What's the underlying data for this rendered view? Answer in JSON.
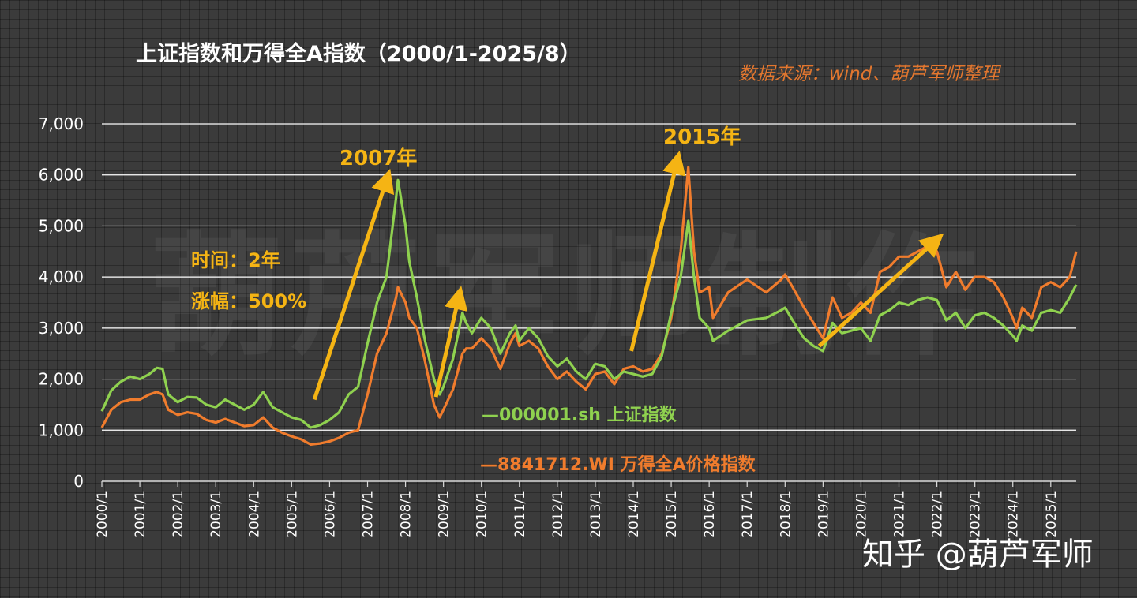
{
  "header": {
    "title": "上证指数和万得全A指数（2000/1-2025/8）",
    "source": "数据来源：wind、葫芦军师整理"
  },
  "watermark": "葫芦军师制作",
  "annotations": {
    "year_2007": "2007年",
    "year_2015": "2015年",
    "duration": "时间：2年",
    "gain": "涨幅：500%"
  },
  "legend": {
    "sh": "—000001.sh 上证指数",
    "wi": "—8841712.WI 万得全A价格指数"
  },
  "footer": {
    "zhihu": "知乎 @葫芦军师"
  },
  "colors": {
    "sh": "#8fd14f",
    "wi": "#f07c2d",
    "arrow": "#f5b414",
    "grid": "#ffffff"
  },
  "chart_data": {
    "type": "line",
    "title": "上证指数和万得全A指数（2000/1-2025/8）",
    "xlabel": "",
    "ylabel": "",
    "xlim": [
      2000.0,
      2025.67
    ],
    "ylim": [
      0,
      7000
    ],
    "yticks": [
      0,
      1000,
      2000,
      3000,
      4000,
      5000,
      6000,
      7000
    ],
    "ytick_labels": [
      "0",
      "1,000",
      "2,000",
      "3,000",
      "4,000",
      "5,000",
      "6,000",
      "7,000"
    ],
    "categories": [
      "2000/1",
      "2001/1",
      "2002/1",
      "2003/1",
      "2004/1",
      "2005/1",
      "2006/1",
      "2007/1",
      "2008/1",
      "2009/1",
      "2010/1",
      "2011/1",
      "2012/1",
      "2013/1",
      "2014/1",
      "2015/1",
      "2016/1",
      "2017/1",
      "2018/1",
      "2019/1",
      "2020/1",
      "2021/1",
      "2022/1",
      "2023/1",
      "2024/1",
      "2025/1"
    ],
    "series": [
      {
        "name": "000001.sh 上证指数",
        "points": [
          [
            2000.0,
            1370
          ],
          [
            2000.25,
            1780
          ],
          [
            2000.5,
            1950
          ],
          [
            2000.75,
            2050
          ],
          [
            2001.0,
            2000
          ],
          [
            2001.25,
            2100
          ],
          [
            2001.45,
            2220
          ],
          [
            2001.6,
            2200
          ],
          [
            2001.75,
            1700
          ],
          [
            2002.0,
            1550
          ],
          [
            2002.25,
            1650
          ],
          [
            2002.5,
            1640
          ],
          [
            2002.75,
            1500
          ],
          [
            2003.0,
            1450
          ],
          [
            2003.25,
            1600
          ],
          [
            2003.5,
            1500
          ],
          [
            2003.75,
            1400
          ],
          [
            2004.0,
            1500
          ],
          [
            2004.25,
            1750
          ],
          [
            2004.5,
            1450
          ],
          [
            2004.75,
            1350
          ],
          [
            2005.0,
            1250
          ],
          [
            2005.25,
            1200
          ],
          [
            2005.5,
            1050
          ],
          [
            2005.75,
            1100
          ],
          [
            2006.0,
            1200
          ],
          [
            2006.25,
            1350
          ],
          [
            2006.5,
            1700
          ],
          [
            2006.75,
            1850
          ],
          [
            2007.0,
            2700
          ],
          [
            2007.25,
            3500
          ],
          [
            2007.5,
            4000
          ],
          [
            2007.75,
            5550
          ],
          [
            2007.8,
            5900
          ],
          [
            2008.0,
            5000
          ],
          [
            2008.1,
            4300
          ],
          [
            2008.3,
            3600
          ],
          [
            2008.5,
            2800
          ],
          [
            2008.75,
            2000
          ],
          [
            2008.9,
            1700
          ],
          [
            2009.0,
            1850
          ],
          [
            2009.25,
            2400
          ],
          [
            2009.5,
            3300
          ],
          [
            2009.6,
            3100
          ],
          [
            2009.75,
            2900
          ],
          [
            2010.0,
            3200
          ],
          [
            2010.25,
            3000
          ],
          [
            2010.5,
            2500
          ],
          [
            2010.75,
            2900
          ],
          [
            2010.9,
            3050
          ],
          [
            2011.0,
            2750
          ],
          [
            2011.25,
            3000
          ],
          [
            2011.5,
            2800
          ],
          [
            2011.75,
            2450
          ],
          [
            2012.0,
            2250
          ],
          [
            2012.25,
            2400
          ],
          [
            2012.5,
            2150
          ],
          [
            2012.75,
            2000
          ],
          [
            2013.0,
            2300
          ],
          [
            2013.25,
            2250
          ],
          [
            2013.5,
            2000
          ],
          [
            2013.75,
            2150
          ],
          [
            2014.0,
            2100
          ],
          [
            2014.25,
            2050
          ],
          [
            2014.5,
            2100
          ],
          [
            2014.75,
            2450
          ],
          [
            2015.0,
            3300
          ],
          [
            2015.25,
            4000
          ],
          [
            2015.45,
            5100
          ],
          [
            2015.6,
            4000
          ],
          [
            2015.75,
            3200
          ],
          [
            2016.0,
            3000
          ],
          [
            2016.1,
            2750
          ],
          [
            2016.5,
            2950
          ],
          [
            2017.0,
            3150
          ],
          [
            2017.5,
            3200
          ],
          [
            2017.9,
            3350
          ],
          [
            2018.0,
            3400
          ],
          [
            2018.2,
            3150
          ],
          [
            2018.5,
            2800
          ],
          [
            2018.75,
            2650
          ],
          [
            2019.0,
            2550
          ],
          [
            2019.25,
            3100
          ],
          [
            2019.5,
            2900
          ],
          [
            2019.75,
            2950
          ],
          [
            2020.0,
            3000
          ],
          [
            2020.25,
            2750
          ],
          [
            2020.5,
            3250
          ],
          [
            2020.75,
            3350
          ],
          [
            2021.0,
            3500
          ],
          [
            2021.25,
            3450
          ],
          [
            2021.5,
            3550
          ],
          [
            2021.75,
            3600
          ],
          [
            2022.0,
            3550
          ],
          [
            2022.25,
            3150
          ],
          [
            2022.5,
            3300
          ],
          [
            2022.75,
            3000
          ],
          [
            2023.0,
            3250
          ],
          [
            2023.25,
            3300
          ],
          [
            2023.5,
            3200
          ],
          [
            2023.75,
            3050
          ],
          [
            2024.0,
            2850
          ],
          [
            2024.1,
            2750
          ],
          [
            2024.25,
            3050
          ],
          [
            2024.5,
            2950
          ],
          [
            2024.75,
            3300
          ],
          [
            2025.0,
            3350
          ],
          [
            2025.25,
            3300
          ],
          [
            2025.5,
            3600
          ],
          [
            2025.67,
            3850
          ]
        ]
      },
      {
        "name": "8841712.WI 万得全A价格指数",
        "points": [
          [
            2000.0,
            1050
          ],
          [
            2000.25,
            1400
          ],
          [
            2000.5,
            1550
          ],
          [
            2000.75,
            1600
          ],
          [
            2001.0,
            1600
          ],
          [
            2001.25,
            1700
          ],
          [
            2001.45,
            1750
          ],
          [
            2001.6,
            1700
          ],
          [
            2001.75,
            1400
          ],
          [
            2002.0,
            1300
          ],
          [
            2002.25,
            1350
          ],
          [
            2002.5,
            1320
          ],
          [
            2002.75,
            1200
          ],
          [
            2003.0,
            1150
          ],
          [
            2003.25,
            1220
          ],
          [
            2003.5,
            1150
          ],
          [
            2003.75,
            1080
          ],
          [
            2004.0,
            1100
          ],
          [
            2004.25,
            1250
          ],
          [
            2004.5,
            1050
          ],
          [
            2004.75,
            950
          ],
          [
            2005.0,
            880
          ],
          [
            2005.25,
            820
          ],
          [
            2005.5,
            720
          ],
          [
            2005.75,
            740
          ],
          [
            2006.0,
            780
          ],
          [
            2006.25,
            850
          ],
          [
            2006.5,
            950
          ],
          [
            2006.75,
            1000
          ],
          [
            2007.0,
            1700
          ],
          [
            2007.25,
            2500
          ],
          [
            2007.5,
            2900
          ],
          [
            2007.75,
            3600
          ],
          [
            2007.8,
            3800
          ],
          [
            2008.0,
            3500
          ],
          [
            2008.1,
            3200
          ],
          [
            2008.3,
            3000
          ],
          [
            2008.5,
            2400
          ],
          [
            2008.75,
            1500
          ],
          [
            2008.9,
            1250
          ],
          [
            2009.0,
            1400
          ],
          [
            2009.25,
            1800
          ],
          [
            2009.5,
            2500
          ],
          [
            2009.6,
            2600
          ],
          [
            2009.75,
            2600
          ],
          [
            2010.0,
            2800
          ],
          [
            2010.25,
            2600
          ],
          [
            2010.5,
            2200
          ],
          [
            2010.75,
            2700
          ],
          [
            2010.9,
            2900
          ],
          [
            2011.0,
            2650
          ],
          [
            2011.25,
            2750
          ],
          [
            2011.5,
            2600
          ],
          [
            2011.75,
            2250
          ],
          [
            2012.0,
            2000
          ],
          [
            2012.25,
            2150
          ],
          [
            2012.5,
            1950
          ],
          [
            2012.75,
            1800
          ],
          [
            2013.0,
            2100
          ],
          [
            2013.25,
            2150
          ],
          [
            2013.5,
            1900
          ],
          [
            2013.75,
            2200
          ],
          [
            2014.0,
            2250
          ],
          [
            2014.25,
            2150
          ],
          [
            2014.5,
            2200
          ],
          [
            2014.75,
            2500
          ],
          [
            2015.0,
            3200
          ],
          [
            2015.25,
            4500
          ],
          [
            2015.45,
            6150
          ],
          [
            2015.6,
            4500
          ],
          [
            2015.75,
            3700
          ],
          [
            2016.0,
            3800
          ],
          [
            2016.1,
            3200
          ],
          [
            2016.5,
            3700
          ],
          [
            2017.0,
            3950
          ],
          [
            2017.5,
            3700
          ],
          [
            2017.9,
            3950
          ],
          [
            2018.0,
            4050
          ],
          [
            2018.2,
            3800
          ],
          [
            2018.5,
            3400
          ],
          [
            2018.75,
            3100
          ],
          [
            2019.0,
            2800
          ],
          [
            2019.25,
            3600
          ],
          [
            2019.5,
            3200
          ],
          [
            2019.75,
            3300
          ],
          [
            2020.0,
            3500
          ],
          [
            2020.25,
            3300
          ],
          [
            2020.5,
            4100
          ],
          [
            2020.75,
            4200
          ],
          [
            2021.0,
            4400
          ],
          [
            2021.25,
            4400
          ],
          [
            2021.5,
            4500
          ],
          [
            2021.75,
            4600
          ],
          [
            2022.0,
            4500
          ],
          [
            2022.25,
            3800
          ],
          [
            2022.5,
            4100
          ],
          [
            2022.75,
            3750
          ],
          [
            2023.0,
            4000
          ],
          [
            2023.25,
            4000
          ],
          [
            2023.5,
            3900
          ],
          [
            2023.75,
            3600
          ],
          [
            2024.0,
            3200
          ],
          [
            2024.1,
            3000
          ],
          [
            2024.25,
            3400
          ],
          [
            2024.5,
            3200
          ],
          [
            2024.75,
            3800
          ],
          [
            2025.0,
            3900
          ],
          [
            2025.25,
            3800
          ],
          [
            2025.5,
            4000
          ],
          [
            2025.67,
            4500
          ]
        ]
      }
    ],
    "arrows": [
      {
        "from": [
          2005.6,
          1600
        ],
        "to": [
          2007.5,
          5900
        ]
      },
      {
        "from": [
          2008.8,
          1650
        ],
        "to": [
          2009.4,
          3600
        ]
      },
      {
        "from": [
          2013.95,
          2550
        ],
        "to": [
          2015.15,
          6250
        ]
      },
      {
        "from": [
          2018.9,
          2650
        ],
        "to": [
          2021.95,
          4700
        ]
      }
    ]
  }
}
